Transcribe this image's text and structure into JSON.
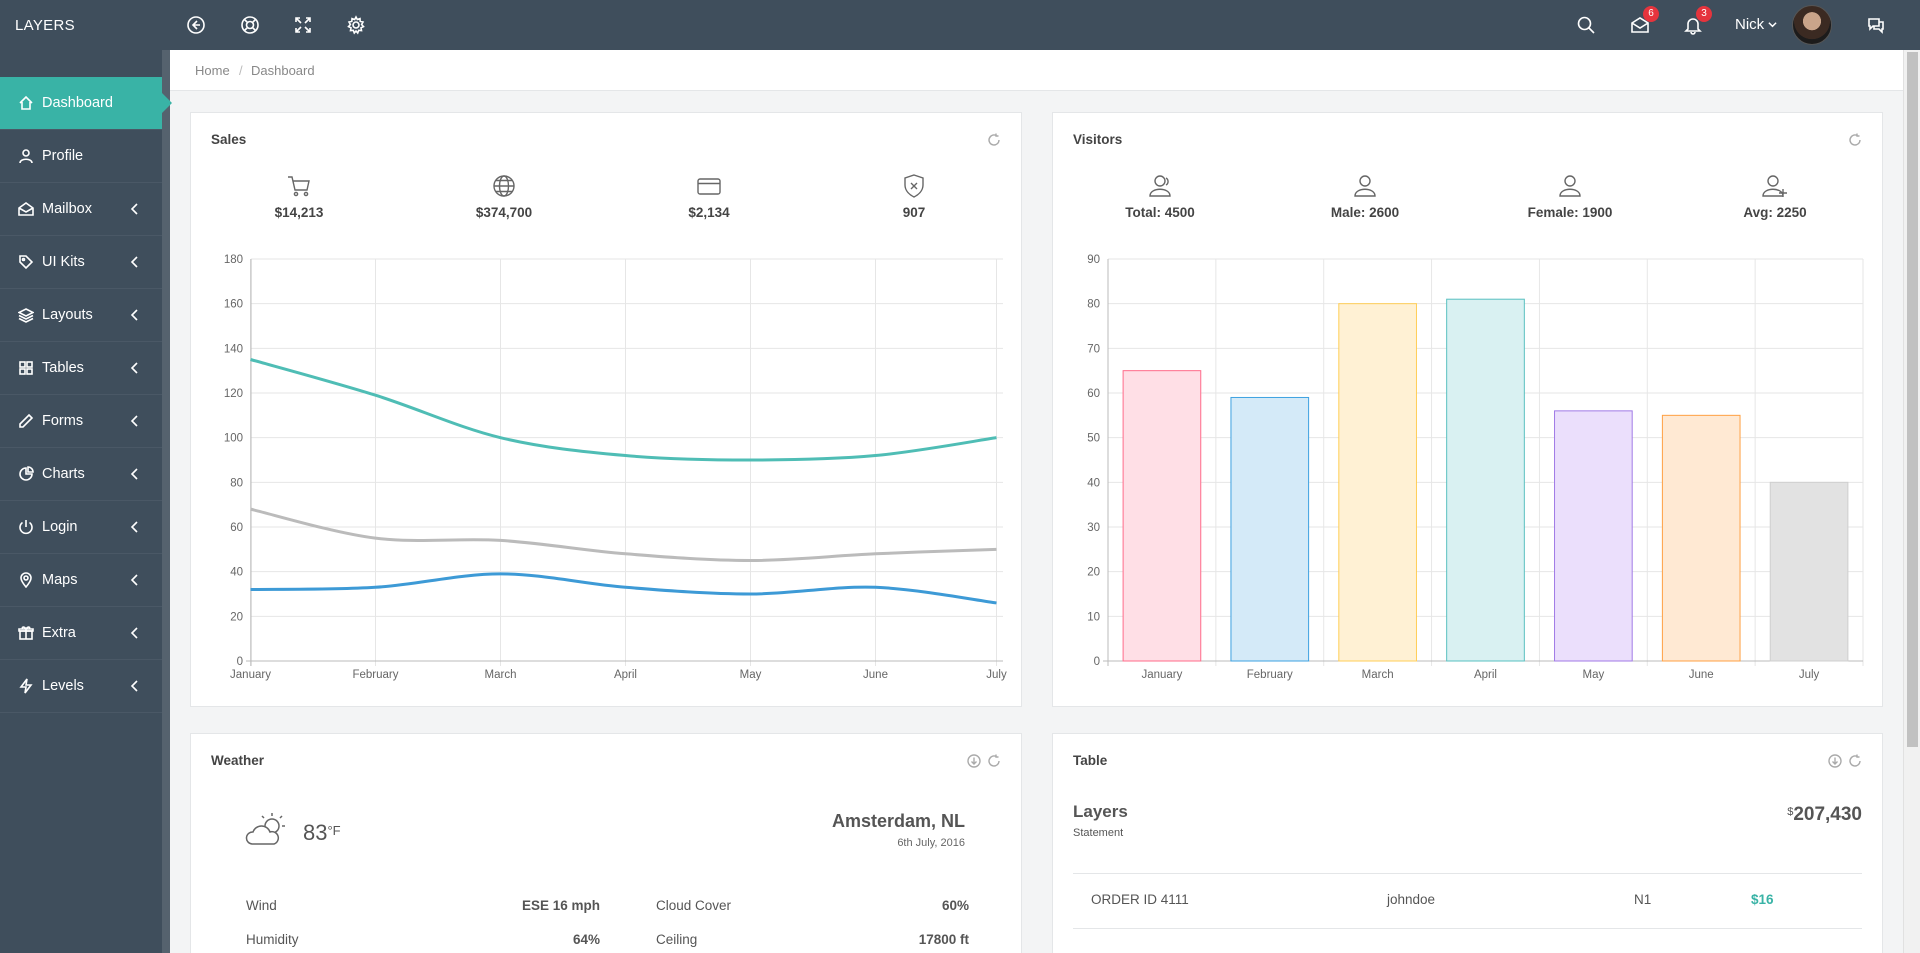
{
  "app": {
    "brand": "LAYERS"
  },
  "topbar": {
    "messages_badge": "6",
    "notifications_badge": "3",
    "user_name": "Nick"
  },
  "sidebar": {
    "items": [
      {
        "label": "Dashboard",
        "icon": "home-icon",
        "active": true
      },
      {
        "label": "Profile",
        "icon": "user-icon"
      },
      {
        "label": "Mailbox",
        "icon": "envelope-icon"
      },
      {
        "label": "UI Kits",
        "icon": "tag-icon"
      },
      {
        "label": "Layouts",
        "icon": "layers-icon"
      },
      {
        "label": "Tables",
        "icon": "grid-icon"
      },
      {
        "label": "Forms",
        "icon": "pencil-icon"
      },
      {
        "label": "Charts",
        "icon": "pie-icon"
      },
      {
        "label": "Login",
        "icon": "power-icon"
      },
      {
        "label": "Maps",
        "icon": "map-pin-icon"
      },
      {
        "label": "Extra",
        "icon": "gift-icon"
      },
      {
        "label": "Levels",
        "icon": "bolt-icon"
      }
    ]
  },
  "breadcrumb": {
    "home": "Home",
    "separator": "/",
    "current": "Dashboard"
  },
  "sales": {
    "title": "Sales",
    "stats": [
      {
        "icon": "cart-icon",
        "value": "$14,213"
      },
      {
        "icon": "globe-icon",
        "value": "$374,700"
      },
      {
        "icon": "credit-card-icon",
        "value": "$2,134"
      },
      {
        "icon": "shield-x-icon",
        "value": "907"
      }
    ]
  },
  "visitors": {
    "title": "Visitors",
    "stats": [
      {
        "icon": "users-icon",
        "value": "Total: 4500"
      },
      {
        "icon": "user-male-icon",
        "value": "Male: 2600"
      },
      {
        "icon": "user-female-icon",
        "value": "Female: 1900"
      },
      {
        "icon": "user-add-icon",
        "value": "Avg: 2250"
      }
    ]
  },
  "chart_data": [
    {
      "type": "line",
      "categories": [
        "January",
        "February",
        "March",
        "April",
        "May",
        "June",
        "July"
      ],
      "ylim": [
        0,
        180
      ],
      "yticks": [
        0,
        20,
        40,
        60,
        80,
        100,
        120,
        140,
        160,
        180
      ],
      "grid": true,
      "series": [
        {
          "values": [
            135,
            119,
            100,
            92,
            90,
            92,
            100
          ],
          "color": "#4fbdb5"
        },
        {
          "values": [
            68,
            55,
            54,
            48,
            45,
            48,
            50
          ],
          "color": "#bbbbbb"
        },
        {
          "values": [
            32,
            33,
            39,
            33,
            30,
            33,
            26
          ],
          "color": "#3d9ad6"
        }
      ]
    },
    {
      "type": "bar",
      "categories": [
        "January",
        "February",
        "March",
        "April",
        "May",
        "June",
        "July"
      ],
      "values": [
        65,
        59,
        80,
        81,
        56,
        55,
        40
      ],
      "ylim": [
        0,
        90
      ],
      "yticks": [
        0,
        10,
        20,
        30,
        40,
        50,
        60,
        70,
        80,
        90
      ],
      "grid": true,
      "fills": [
        "#ffdfe6",
        "#d4eaf8",
        "#fff1d4",
        "#d9f1f2",
        "#ebdffc",
        "#ffe9d3",
        "#e2e2e2"
      ],
      "strokes": [
        "#ff6b8a",
        "#3ea1e0",
        "#ffce57",
        "#58c0c0",
        "#a07ae6",
        "#ffa043",
        "#cfcfcf"
      ]
    }
  ],
  "weather": {
    "title": "Weather",
    "icon": "cloud-sun-icon",
    "temp": "83",
    "unit": "°F",
    "city": "Amsterdam, NL",
    "date": "6th July, 2016",
    "rows": [
      {
        "label": "Wind",
        "value": "ESE 16 mph",
        "label2": "Cloud Cover",
        "value2": "60%"
      },
      {
        "label": "Humidity",
        "value": "64%",
        "label2": "Ceiling",
        "value2": "17800 ft"
      }
    ]
  },
  "table": {
    "title": "Table",
    "name": "Layers",
    "subtitle": "Statement",
    "currency": "$",
    "total": "207,430",
    "rows": [
      {
        "order": "ORDER ID 4111",
        "user": "johndoe",
        "code": "N1",
        "amount": "$16"
      }
    ]
  }
}
